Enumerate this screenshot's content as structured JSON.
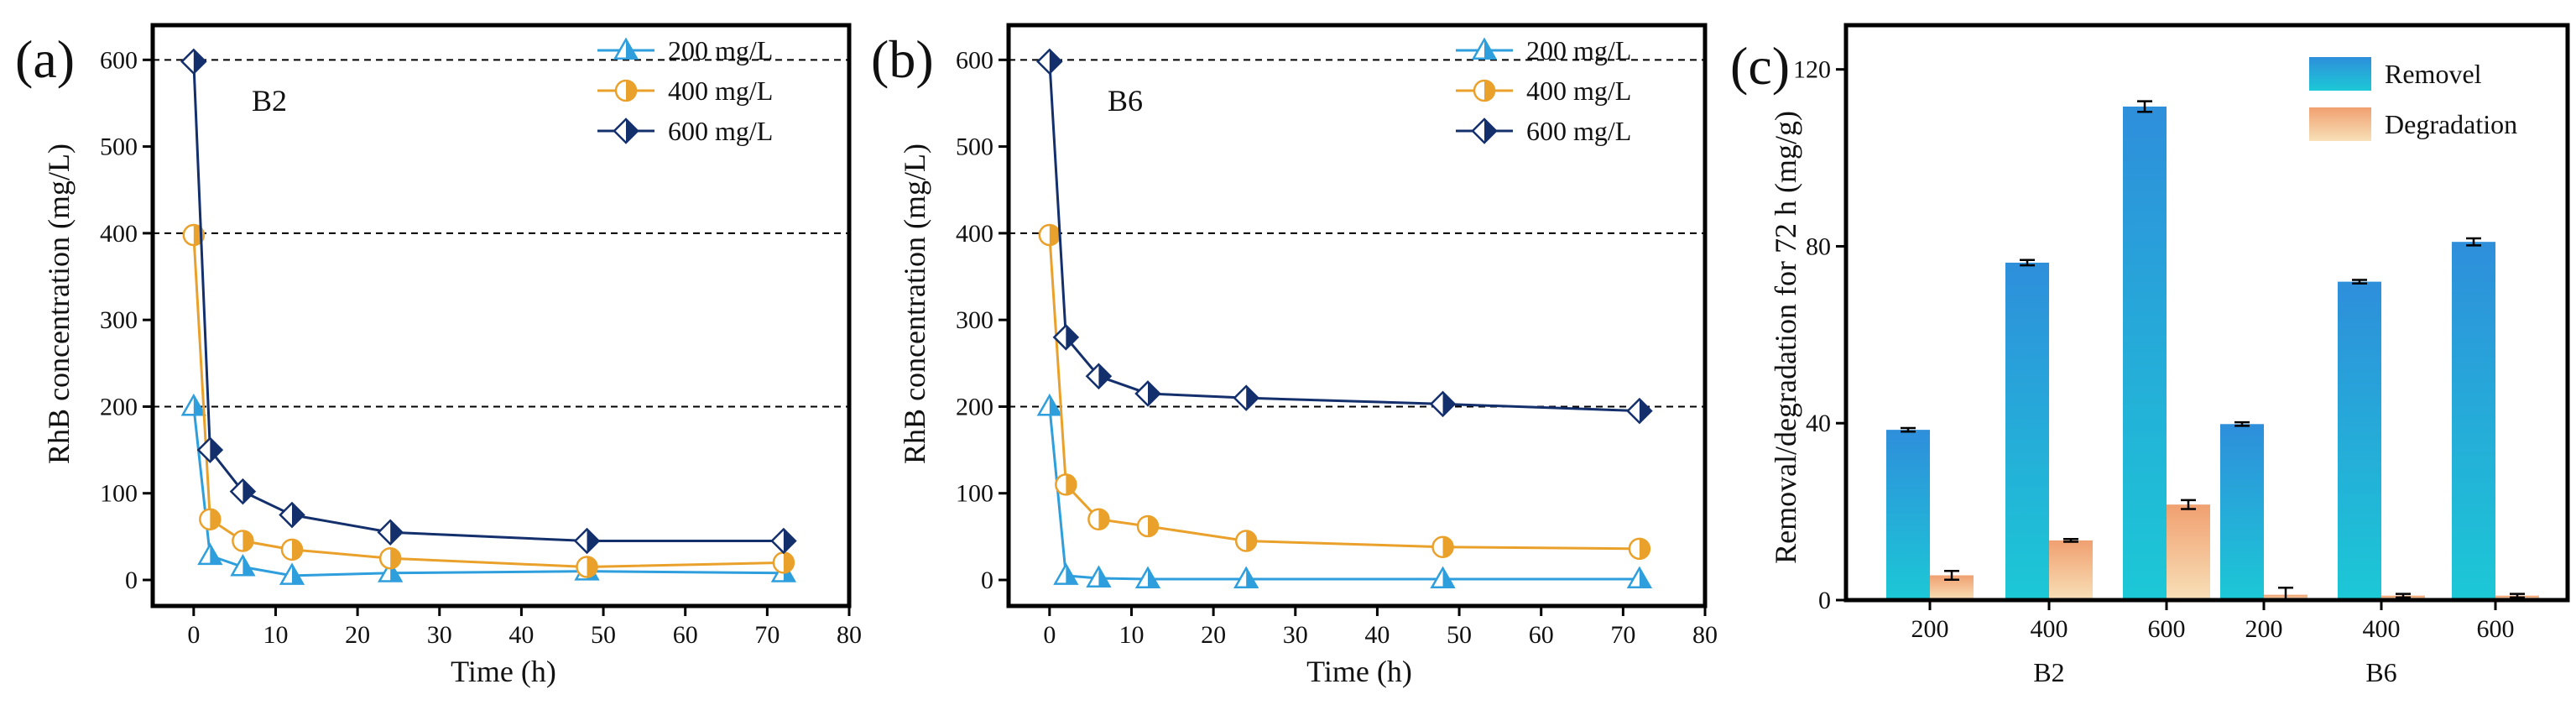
{
  "colors": {
    "s200": "#2e9fdc",
    "s400": "#eaa12b",
    "s600": "#14306c",
    "bar_removal_top": "#2e8fdb",
    "bar_removal_bottom": "#1cc8d6",
    "bar_degradation_top": "#f0a070",
    "bar_degradation_bottom": "#f8e0b8",
    "axis": "#000000",
    "grid": "#000000"
  },
  "chart_data": [
    {
      "type": "line",
      "panel_label": "(a)",
      "sample_label": "B2",
      "xlabel": "Time (h)",
      "ylabel": "RhB concentration (mg/L)",
      "xlim": [
        -5,
        80
      ],
      "ylim": [
        -30,
        640
      ],
      "xticks": [
        0,
        10,
        20,
        30,
        40,
        50,
        60,
        70,
        80
      ],
      "xtick_labels": [
        "0",
        "10",
        "20",
        "30",
        "40",
        "50",
        "60",
        "70",
        "80"
      ],
      "yticks": [
        0,
        100,
        200,
        300,
        400,
        500,
        600
      ],
      "ytick_labels": [
        "0",
        "100",
        "200",
        "300",
        "400",
        "500",
        "600"
      ],
      "gridlines_y": [
        200,
        400,
        600
      ],
      "legend_position": "top-right",
      "series": [
        {
          "name": "200 mg/L",
          "marker": "triangle",
          "x": [
            0,
            2,
            6,
            12,
            24,
            48,
            72
          ],
          "y": [
            200,
            28,
            15,
            5,
            8,
            10,
            8
          ]
        },
        {
          "name": "400 mg/L",
          "marker": "circle",
          "x": [
            0,
            2,
            6,
            12,
            24,
            48,
            72
          ],
          "y": [
            398,
            70,
            45,
            35,
            25,
            15,
            20
          ]
        },
        {
          "name": "600 mg/L",
          "marker": "diamond",
          "x": [
            0,
            2,
            6,
            12,
            24,
            48,
            72
          ],
          "y": [
            598,
            150,
            102,
            75,
            55,
            45,
            45
          ]
        }
      ]
    },
    {
      "type": "line",
      "panel_label": "(b)",
      "sample_label": "B6",
      "xlabel": "Time (h)",
      "ylabel": "RhB concentration (mg/L)",
      "xlim": [
        -5,
        80
      ],
      "ylim": [
        -30,
        640
      ],
      "xticks": [
        0,
        10,
        20,
        30,
        40,
        50,
        60,
        70,
        80
      ],
      "xtick_labels": [
        "0",
        "10",
        "20",
        "30",
        "40",
        "50",
        "60",
        "70",
        "80"
      ],
      "yticks": [
        0,
        100,
        200,
        300,
        400,
        500,
        600
      ],
      "ytick_labels": [
        "0",
        "100",
        "200",
        "300",
        "400",
        "500",
        "600"
      ],
      "gridlines_y": [
        200,
        400,
        600
      ],
      "legend_position": "top-right",
      "series": [
        {
          "name": "200 mg/L",
          "marker": "triangle",
          "x": [
            0,
            2,
            6,
            12,
            24,
            48,
            72
          ],
          "y": [
            200,
            5,
            2,
            1,
            1,
            1,
            1
          ]
        },
        {
          "name": "400 mg/L",
          "marker": "circle",
          "x": [
            0,
            2,
            6,
            12,
            24,
            48,
            72
          ],
          "y": [
            398,
            110,
            70,
            62,
            45,
            38,
            36
          ]
        },
        {
          "name": "600 mg/L",
          "marker": "diamond",
          "x": [
            0,
            2,
            6,
            12,
            24,
            48,
            72
          ],
          "y": [
            598,
            280,
            235,
            215,
            210,
            203,
            195
          ]
        }
      ]
    },
    {
      "type": "bar",
      "panel_label": "(c)",
      "xlabel": "",
      "ylabel": "Removal/degradation for 72 h (mg/g)",
      "ylim": [
        0,
        130
      ],
      "yticks": [
        0,
        40,
        80,
        120
      ],
      "ytick_labels": [
        "0",
        "40",
        "80",
        "120"
      ],
      "groups": [
        "B2",
        "B6"
      ],
      "categories": [
        "200",
        "400",
        "600",
        "200",
        "400",
        "600"
      ],
      "legend_position": "top-right",
      "series": [
        {
          "name": "Removel",
          "values": [
            38.5,
            76.3,
            111.6,
            39.8,
            72.0,
            81.0
          ],
          "errors": [
            0.4,
            0.6,
            1.2,
            0.4,
            0.4,
            0.8
          ]
        },
        {
          "name": "Degradation",
          "values": [
            5.6,
            13.5,
            21.6,
            1.2,
            1.0,
            1.0
          ],
          "errors": [
            1.0,
            0.3,
            1.0,
            1.6,
            0.4,
            0.4
          ]
        }
      ]
    }
  ]
}
